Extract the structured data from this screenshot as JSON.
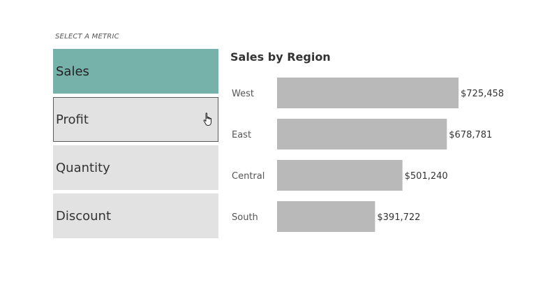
{
  "filter": {
    "label": "SELECT A METRIC",
    "options": [
      {
        "label": "Sales",
        "state": "selected"
      },
      {
        "label": "Profit",
        "state": "hovered"
      },
      {
        "label": "Quantity",
        "state": "default"
      },
      {
        "label": "Discount",
        "state": "default"
      }
    ],
    "cursor_icon": "hand-pointer-icon"
  },
  "colors": {
    "selected_fill": "#76b2aa",
    "option_fill": "#e2e2e2",
    "bar_fill": "#b9b9b9"
  },
  "chart_data": {
    "type": "bar",
    "orientation": "horizontal",
    "title": "Sales by Region",
    "categories": [
      "West",
      "East",
      "Central",
      "South"
    ],
    "values": [
      725458,
      678781,
      501240,
      391722
    ],
    "value_labels": [
      "$725,458",
      "$678,781",
      "$501,240",
      "$391,722"
    ],
    "xlim": [
      0,
      725458
    ],
    "grid": false
  }
}
